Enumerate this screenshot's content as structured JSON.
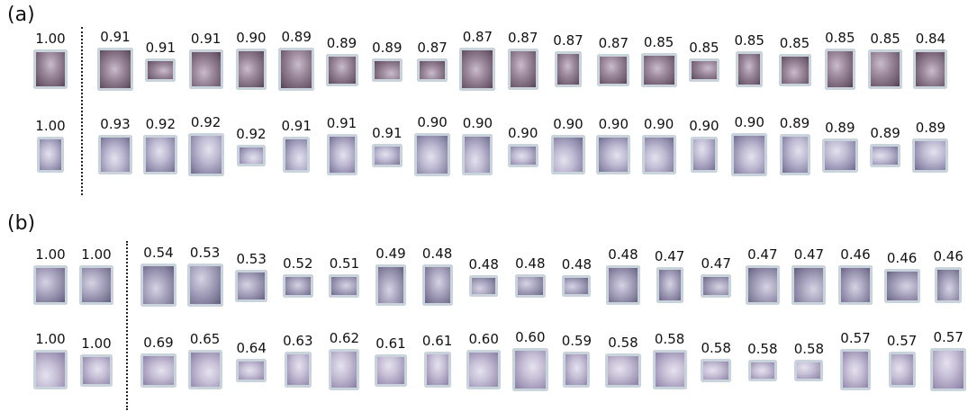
{
  "panels": [
    {
      "label": "(a)",
      "rows": [
        {
          "query": [
            "1.00"
          ],
          "results": [
            "0.91",
            "0.91",
            "0.91",
            "0.90",
            "0.89",
            "0.89",
            "0.89",
            "0.87",
            "0.87",
            "0.87",
            "0.87",
            "0.87",
            "0.85",
            "0.85",
            "0.85",
            "0.85",
            "0.85",
            "0.85",
            "0.84"
          ]
        },
        {
          "query": [
            "1.00"
          ],
          "results": [
            "0.93",
            "0.92",
            "0.92",
            "0.92",
            "0.91",
            "0.91",
            "0.91",
            "0.90",
            "0.90",
            "0.90",
            "0.90",
            "0.90",
            "0.90",
            "0.90",
            "0.90",
            "0.89",
            "0.89",
            "0.89",
            "0.89"
          ]
        }
      ]
    },
    {
      "label": "(b)",
      "rows": [
        {
          "query": [
            "1.00",
            "1.00"
          ],
          "results": [
            "0.54",
            "0.53",
            "0.53",
            "0.52",
            "0.51",
            "0.49",
            "0.48",
            "0.48",
            "0.48",
            "0.48",
            "0.48",
            "0.47",
            "0.47",
            "0.47",
            "0.47",
            "0.46",
            "0.46",
            "0.46"
          ]
        },
        {
          "query": [
            "1.00",
            "1.00"
          ],
          "results": [
            "0.69",
            "0.65",
            "0.64",
            "0.63",
            "0.62",
            "0.61",
            "0.61",
            "0.60",
            "0.60",
            "0.59",
            "0.58",
            "0.58",
            "0.58",
            "0.58",
            "0.58",
            "0.57",
            "0.57",
            "0.57"
          ]
        }
      ]
    }
  ]
}
